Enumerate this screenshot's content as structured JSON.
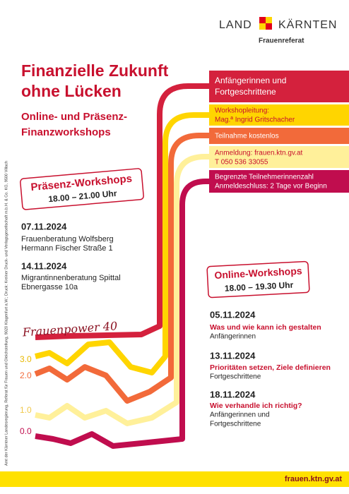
{
  "logo": {
    "land": "LAND",
    "karnten": "KÄRNTEN",
    "department": "Frauenreferat"
  },
  "imprint": "Amt der Kärntner Landesregierung, Referat für Frauen und Gleichstellung, 9020 Klagenfurt a.W.; Druck: Kreiner Druck- und Verlagsgesellschaft m.b.H. & Co. KG, 9500 Villach",
  "title": [
    "Finanzielle Zukunft",
    "ohne Lücken"
  ],
  "subtitle": [
    "Online- und Präsenz-",
    "Finanzworkshops"
  ],
  "info_bands": [
    {
      "lines": [
        "Anfängerinnen und",
        "Fortgeschrittene"
      ]
    },
    {
      "lines": [
        "Workshopleitung:",
        "Mag.ª Ingrid Gritschacher"
      ]
    },
    {
      "lines": [
        "Teilnahme kostenlos"
      ]
    },
    {
      "lines": [
        "Anmeldung: frauen.ktn.gv.at",
        "T 050 536 33055"
      ]
    },
    {
      "lines": [
        "Begrenzte Teilnehmerinnenzahl",
        "Anmeldeschluss: 2 Tage vor Beginn"
      ]
    }
  ],
  "presence": {
    "heading": "Präsenz-Workshops",
    "time": "18.00 – 21.00 Uhr",
    "events": [
      {
        "date": "07.11.2024",
        "lines": [
          "Frauenberatung Wolfsberg",
          "Hermann Fischer Straße 1"
        ]
      },
      {
        "date": "14.11.2024",
        "lines": [
          "Migrantinnenberatung Spittal",
          "Ebnergasse 10a"
        ]
      }
    ]
  },
  "online": {
    "heading": "Online-Workshops",
    "time": "18.00 – 19.30 Uhr",
    "events": [
      {
        "date": "05.11.2024",
        "title": "Was und wie kann ich gestalten",
        "audience": [
          "Anfängerinnen"
        ]
      },
      {
        "date": "13.11.2024",
        "title": "Prioritäten setzen, Ziele definieren",
        "audience": [
          "Fortgeschrittene"
        ]
      },
      {
        "date": "18.11.2024",
        "title": "Wie verhandle ich richtig?",
        "audience": [
          "Anfängerinnen und",
          "Fortgeschrittene"
        ]
      }
    ]
  },
  "graphic": {
    "signature": "Frauenpower 40",
    "labels": [
      "3.0",
      "2.0",
      "1.0",
      "0.0"
    ]
  },
  "footer": "frauen.ktn.gv.at"
}
